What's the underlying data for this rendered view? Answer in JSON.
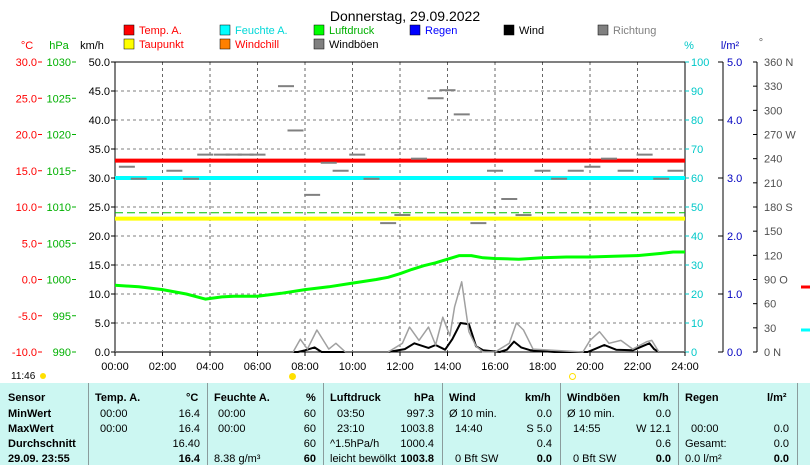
{
  "title": "Donnerstag, 29.09.2022",
  "legend": [
    {
      "label": "Temp. A.",
      "color": "#ff0000",
      "text_color": "#ff0000"
    },
    {
      "label": "Feuchte A.",
      "color": "#00ffff",
      "text_color": "#00d8d8"
    },
    {
      "label": "Luftdruck",
      "color": "#00ff00",
      "text_color": "#00b000"
    },
    {
      "label": "Regen",
      "color": "#0000ff",
      "text_color": "#0000ff"
    },
    {
      "label": "Wind",
      "color": "#000000",
      "text_color": "#000000"
    },
    {
      "label": "Richtung",
      "color": "#808080",
      "text_color": "#808080"
    },
    {
      "label": "Taupunkt",
      "color": "#ffff00",
      "text_color": "#ff0000"
    },
    {
      "label": "Windchill",
      "color": "#ff8000",
      "text_color": "#ff0000"
    },
    {
      "label": "Windböen",
      "color": "#808080",
      "text_color": "#000000"
    }
  ],
  "axes": {
    "temp": {
      "unit": "°C",
      "ticks": [
        "30.0",
        "25.0",
        "20.0",
        "15.0",
        "10.0",
        "5.0",
        "0.0",
        "-5.0",
        "-10.0"
      ],
      "color": "#ff0000"
    },
    "pressure": {
      "unit": "hPa",
      "ticks": [
        "1030",
        "1025",
        "1020",
        "1015",
        "1010",
        "1005",
        "1000",
        "995",
        "990"
      ],
      "color": "#00b000"
    },
    "wind": {
      "unit": "km/h",
      "ticks": [
        "50.0",
        "45.0",
        "40.0",
        "35.0",
        "30.0",
        "25.0",
        "20.0",
        "15.0",
        "10.0",
        "5.0",
        "0.0"
      ],
      "color": "#000000"
    },
    "humidity": {
      "unit": "%",
      "ticks": [
        "100",
        "90",
        "80",
        "70",
        "60",
        "50",
        "40",
        "30",
        "20",
        "10",
        "0"
      ],
      "color": "#00c8c8"
    },
    "rain": {
      "unit": "l/m²",
      "ticks": [
        "5.0",
        "4.0",
        "3.0",
        "2.0",
        "1.0",
        "0.0"
      ],
      "color": "#0000c0"
    },
    "direction": {
      "unit": "°",
      "ticks": [
        "360 N",
        "330",
        "300",
        "270 W",
        "240",
        "210",
        "180 S",
        "150",
        "120",
        "90 O",
        "60",
        "30",
        "0  N"
      ],
      "color": "#606060"
    },
    "time_ticks": [
      "00:00",
      "02:00",
      "04:00",
      "06:00",
      "08:00",
      "10:00",
      "12:00",
      "14:00",
      "16:00",
      "18:00",
      "20:00",
      "22:00",
      "24:00"
    ]
  },
  "chart_data": {
    "type": "line",
    "x_unit": "hours",
    "xlim": [
      0,
      24
    ],
    "series": [
      {
        "name": "Temp. A.",
        "axis": "temp",
        "color": "#ff0000",
        "x": [
          0,
          24
        ],
        "values": [
          16.4,
          16.4
        ]
      },
      {
        "name": "Feuchte A.",
        "axis": "humidity",
        "color": "#00ffff",
        "x": [
          0,
          24
        ],
        "values": [
          60,
          60
        ]
      },
      {
        "name": "Taupunkt",
        "axis": "temp",
        "color": "#ffff00",
        "x": [
          0,
          24
        ],
        "values": [
          8.4,
          8.4
        ]
      },
      {
        "name": "Luftdruck",
        "axis": "pressure",
        "color": "#00ff00",
        "x": [
          0,
          1,
          2,
          3,
          3.8,
          4.5,
          5,
          6,
          7,
          8,
          9,
          10,
          11,
          11.5,
          12,
          12.5,
          13,
          13.5,
          14,
          14.5,
          15,
          15.5,
          16,
          17,
          18,
          19,
          20,
          21,
          22,
          23,
          23.5,
          24
        ],
        "values": [
          999.2,
          999.0,
          998.6,
          998.0,
          997.3,
          997.6,
          997.7,
          997.7,
          998.1,
          998.6,
          999.0,
          999.5,
          1000.0,
          1000.3,
          1000.8,
          1001.4,
          1001.9,
          1002.3,
          1002.8,
          1003.3,
          1003.3,
          1003.0,
          1002.9,
          1002.8,
          1003.0,
          1003.1,
          1003.1,
          1003.2,
          1003.3,
          1003.6,
          1003.8,
          1003.8
        ]
      },
      {
        "name": "Wind",
        "axis": "wind",
        "color": "#000000",
        "x": [
          0,
          7.7,
          8.0,
          8.4,
          8.7,
          9.5,
          11.5,
          12.2,
          12.6,
          13.2,
          13.5,
          13.9,
          14.2,
          14.55,
          14.9,
          15.2,
          15.5,
          16.2,
          16.5,
          16.8,
          17.1,
          17.5,
          18.5,
          19.9,
          20.2,
          20.6,
          21.1,
          21.8,
          22.5,
          22.7,
          22.9,
          23.3,
          24
        ],
        "values": [
          0,
          0,
          0.3,
          0.8,
          0,
          0,
          0,
          0.5,
          1.5,
          0.7,
          1.2,
          0.4,
          2.2,
          5.0,
          4.8,
          1.0,
          0.3,
          0,
          0.4,
          1.8,
          0.8,
          0.3,
          0,
          0,
          0.5,
          1.2,
          0.4,
          0.3,
          1.5,
          0.5,
          0,
          0,
          0
        ]
      },
      {
        "name": "Windböen",
        "axis": "wind",
        "color": "#a0a0a0",
        "x": [
          0,
          7.5,
          7.8,
          8.1,
          8.5,
          9.0,
          9.3,
          9.7,
          11.5,
          12.1,
          12.4,
          12.8,
          13.2,
          13.5,
          13.8,
          14.1,
          14.3,
          14.6,
          14.9,
          15.2,
          15.5,
          16.0,
          16.6,
          16.9,
          17.2,
          17.6,
          19.7,
          20.0,
          20.4,
          20.8,
          21.3,
          21.8,
          22.4,
          22.6,
          22.9,
          23.2,
          24
        ],
        "values": [
          0,
          0,
          2.2,
          0.5,
          3.8,
          0.5,
          1.5,
          0,
          0,
          1.5,
          4.3,
          2.0,
          4.3,
          1.2,
          6.0,
          2.8,
          7.8,
          12.1,
          3.5,
          1.0,
          0,
          0,
          1.5,
          5.0,
          3.8,
          0.5,
          0,
          2.0,
          3.5,
          1.5,
          2.0,
          0.5,
          1.8,
          2.0,
          0,
          0,
          0
        ]
      },
      {
        "name": "Richtung",
        "axis": "direction",
        "color": "#808080",
        "x": [
          0.5,
          1.0,
          2.5,
          3.2,
          3.8,
          4.5,
          5.0,
          5.5,
          6.0,
          7.2,
          7.6,
          8.3,
          9.0,
          9.5,
          10.2,
          10.8,
          11.5,
          12.1,
          12.8,
          13.5,
          14.0,
          14.6,
          15.3,
          16.0,
          16.6,
          17.2,
          18.0,
          18.7,
          19.4,
          20.1,
          20.8,
          21.5,
          22.3,
          23.0,
          23.6
        ],
        "values": [
          230,
          215,
          225,
          215,
          245,
          245,
          245,
          245,
          245,
          330,
          275,
          195,
          235,
          225,
          245,
          215,
          160,
          170,
          240,
          315,
          325,
          295,
          160,
          225,
          190,
          170,
          225,
          215,
          225,
          230,
          240,
          225,
          245,
          215,
          225
        ]
      }
    ]
  },
  "timebar": {
    "current": "11:46"
  },
  "table": {
    "headers": [
      "Sensor",
      "Temp. A.",
      "°C",
      "Feuchte A.",
      "%",
      "Luftdruck",
      "hPa",
      "Wind",
      "km/h",
      "Windböen",
      "km/h",
      "Regen",
      "l/m²"
    ],
    "rows": [
      {
        "label": "MinWert",
        "cells": [
          "00:00",
          "16.4",
          "00:00",
          "60",
          "03:50",
          "997.3",
          "Ø 10 min.",
          "0.0",
          "Ø 10 min.",
          "0.0",
          "",
          ""
        ]
      },
      {
        "label": "MaxWert",
        "cells": [
          "00:00",
          "16.4",
          "00:00",
          "60",
          "23:10",
          "1003.8",
          "14:40",
          "S 5.0",
          "14:55",
          "W 12.1",
          "00:00",
          "0.0"
        ]
      },
      {
        "label": "Durchschnitt",
        "cells": [
          "",
          "16.40",
          "",
          "60",
          "^1.5hPa/h",
          "1000.4",
          "",
          "0.4",
          "",
          "0.6",
          "Gesamt:",
          "0.0"
        ]
      },
      {
        "label": "29.09. 23:55",
        "cells": [
          "",
          "16.4",
          "8.38 g/m³",
          "60",
          "leicht bewölkt",
          "1003.8",
          "0 Bft SW",
          "0.0",
          "0 Bft SW",
          "0.0",
          "0.0 l/m²",
          "0.0"
        ]
      }
    ]
  }
}
